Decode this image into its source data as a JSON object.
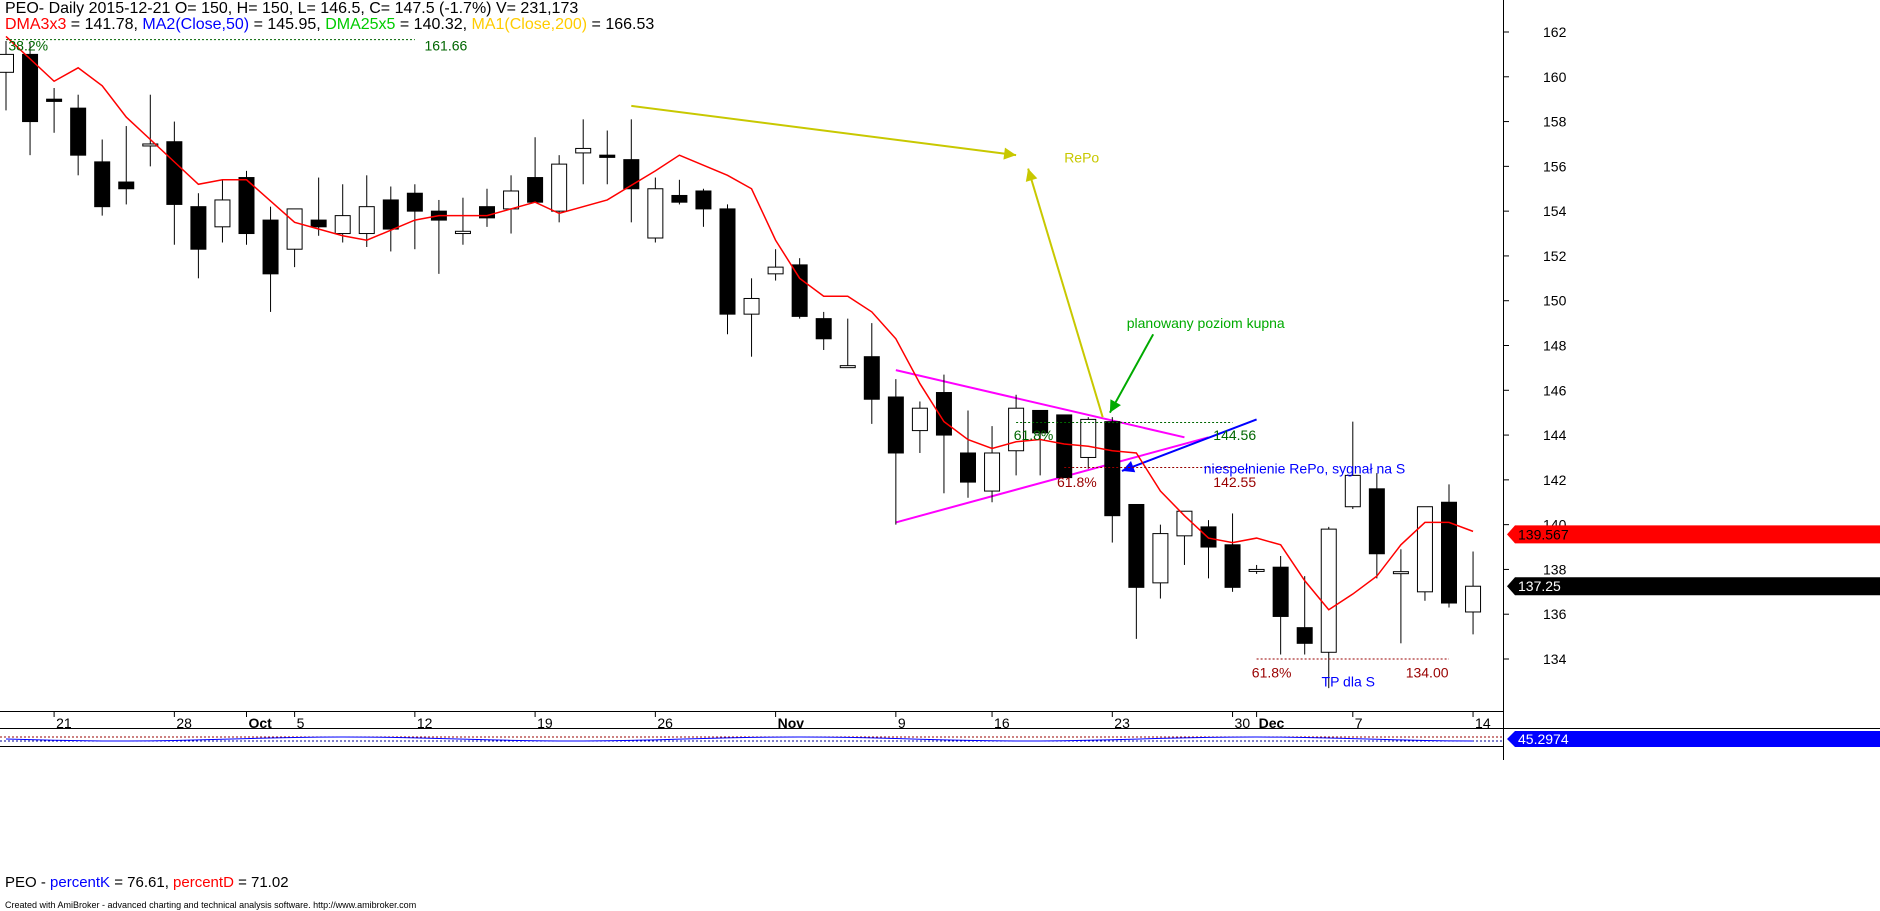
{
  "header": {
    "line1": "PEO- Daily 2015-12-21 O= 150, H= 150, L= 146.5, C= 147.5 (-1.7%) V= 231,173",
    "ind1_label": "DMA3x3",
    "ind1_value": " = 141.78, ",
    "ind2_label": "MA2(Close,50)",
    "ind2_value": " = 145.95, ",
    "ind3_label": "DMA25x5",
    "ind3_value": " = 140.32, ",
    "ind4_label": "MA1(Close,200)",
    "ind4_value": " = 166.53"
  },
  "sub_header": {
    "ticker": "PEO - ",
    "k_label": "percentK",
    "k_value": " = 76.61, ",
    "d_label": "percentD",
    "d_value": " = 71.02"
  },
  "footer": "Created with AmiBroker - advanced charting and technical analysis software. http://www.amibroker.com",
  "colors": {
    "up_body": "#ffffff",
    "down_body": "#000000",
    "dma3x3": "#ff0000",
    "ma2": "#0000ff",
    "dma25x5": "#00cc00",
    "ma200": "#ffcc00",
    "triangle": "#ff00ff",
    "repo_arrow": "#c8c800",
    "plan_arrow": "#00aa00",
    "blue_arrow": "#0000ff",
    "fib_green": "#006600",
    "fib_red": "#990000",
    "price_bg": "#ff0000",
    "close_bg": "#000000"
  },
  "chart_data": {
    "type": "candlestick",
    "ylim": [
      131.5,
      163
    ],
    "y_ticks": [
      134,
      136,
      138,
      140,
      142,
      144,
      146,
      148,
      150,
      152,
      154,
      156,
      158,
      160,
      162
    ],
    "x_labels": [
      {
        "i": 2,
        "label": "21"
      },
      {
        "i": 7,
        "label": "28"
      },
      {
        "i": 10,
        "label": "Oct",
        "bold": true
      },
      {
        "i": 12,
        "label": "5"
      },
      {
        "i": 17,
        "label": "12"
      },
      {
        "i": 22,
        "label": "19"
      },
      {
        "i": 27,
        "label": "26"
      },
      {
        "i": 32,
        "label": "Nov",
        "bold": true
      },
      {
        "i": 37,
        "label": "9"
      },
      {
        "i": 41,
        "label": "16"
      },
      {
        "i": 46,
        "label": "23"
      },
      {
        "i": 51,
        "label": "30"
      },
      {
        "i": 52,
        "label": "Dec",
        "bold": true
      },
      {
        "i": 56,
        "label": "7"
      },
      {
        "i": 61,
        "label": "14"
      }
    ],
    "ohlc": [
      [
        160.2,
        161.6,
        158.5,
        161.0
      ],
      [
        161.0,
        161.5,
        156.5,
        158.0
      ],
      [
        159.0,
        159.5,
        157.5,
        158.9
      ],
      [
        158.6,
        159.2,
        155.6,
        156.5
      ],
      [
        156.2,
        157.2,
        153.8,
        154.2
      ],
      [
        155.3,
        157.8,
        154.3,
        155.0
      ],
      [
        157.0,
        159.2,
        156.0,
        157.0
      ],
      [
        157.1,
        158.0,
        152.5,
        154.3
      ],
      [
        154.2,
        154.8,
        151.0,
        152.3
      ],
      [
        153.3,
        155.4,
        152.6,
        154.5
      ],
      [
        155.5,
        155.8,
        152.5,
        153.0
      ],
      [
        153.6,
        154.2,
        149.5,
        151.2
      ],
      [
        152.3,
        154.1,
        151.5,
        154.1
      ],
      [
        153.6,
        155.5,
        152.9,
        153.3
      ],
      [
        153.0,
        155.2,
        152.6,
        153.8
      ],
      [
        153.0,
        155.6,
        152.4,
        154.2
      ],
      [
        154.5,
        155.1,
        152.2,
        153.2
      ],
      [
        154.8,
        155.2,
        152.3,
        154.0
      ],
      [
        154.0,
        154.5,
        151.2,
        153.6
      ],
      [
        153.0,
        154.6,
        152.5,
        153.1
      ],
      [
        154.2,
        155.0,
        153.3,
        153.7
      ],
      [
        154.1,
        155.6,
        153.0,
        154.9
      ],
      [
        155.5,
        157.3,
        154.4,
        154.4
      ],
      [
        154.0,
        156.5,
        153.5,
        156.1
      ],
      [
        156.6,
        158.1,
        155.2,
        156.8
      ],
      [
        156.5,
        157.6,
        155.2,
        156.4
      ],
      [
        156.3,
        158.1,
        153.5,
        155.0
      ],
      [
        152.8,
        155.5,
        152.6,
        155.0
      ],
      [
        154.7,
        155.4,
        154.3,
        154.4
      ],
      [
        154.9,
        155.0,
        153.3,
        154.1
      ],
      [
        154.1,
        154.3,
        148.5,
        149.4
      ],
      [
        149.4,
        151.0,
        147.5,
        150.1
      ],
      [
        151.2,
        152.3,
        150.9,
        151.5
      ],
      [
        151.6,
        151.9,
        149.2,
        149.3
      ],
      [
        149.2,
        149.5,
        147.8,
        148.3
      ],
      [
        147.1,
        149.2,
        147.1,
        147.1
      ],
      [
        147.5,
        149.0,
        144.5,
        145.6
      ],
      [
        145.7,
        146.5,
        140.0,
        143.2
      ],
      [
        144.2,
        145.5,
        143.2,
        145.2
      ],
      [
        145.9,
        146.7,
        141.4,
        144.0
      ],
      [
        143.2,
        145.1,
        141.2,
        141.9
      ],
      [
        141.5,
        144.4,
        141.0,
        143.2
      ],
      [
        143.3,
        145.8,
        142.2,
        145.2
      ],
      [
        145.1,
        145.0,
        142.2,
        144.1
      ],
      [
        144.9,
        144.9,
        142.1,
        142.1
      ],
      [
        143.0,
        144.8,
        142.5,
        144.7
      ],
      [
        144.6,
        144.8,
        139.2,
        140.4
      ],
      [
        140.9,
        140.9,
        134.9,
        137.2
      ],
      [
        137.4,
        140.0,
        136.7,
        139.6
      ],
      [
        139.5,
        140.6,
        138.2,
        140.6
      ],
      [
        139.9,
        140.2,
        137.6,
        139.0
      ],
      [
        139.1,
        140.5,
        137.0,
        137.2
      ],
      [
        138.0,
        138.2,
        137.8,
        138.0
      ],
      [
        138.1,
        138.6,
        134.2,
        135.9
      ],
      [
        135.4,
        137.7,
        134.2,
        134.7
      ],
      [
        134.3,
        139.9,
        132.7,
        139.8
      ],
      [
        140.8,
        144.6,
        140.7,
        142.2
      ],
      [
        141.6,
        142.3,
        137.6,
        138.7
      ],
      [
        137.9,
        138.9,
        134.7,
        137.9
      ],
      [
        137.0,
        140.8,
        136.6,
        140.8
      ],
      [
        141.0,
        141.8,
        136.3,
        136.5
      ],
      [
        136.1,
        138.8,
        135.1,
        137.25
      ]
    ],
    "dma3x3": [
      [
        0,
        161.8
      ],
      [
        2,
        159.8
      ],
      [
        3,
        160.4
      ],
      [
        4,
        159.6
      ],
      [
        5,
        158.2
      ],
      [
        7,
        156.2
      ],
      [
        8,
        155.2
      ],
      [
        9,
        155.4
      ],
      [
        10,
        155.4
      ],
      [
        12,
        153.5
      ],
      [
        14,
        152.9
      ],
      [
        15,
        152.7
      ],
      [
        17,
        153.6
      ],
      [
        18,
        153.8
      ],
      [
        20,
        153.8
      ],
      [
        22,
        154.4
      ],
      [
        23,
        153.9
      ],
      [
        25,
        154.5
      ],
      [
        27,
        155.8
      ],
      [
        28,
        156.5
      ],
      [
        30,
        155.6
      ],
      [
        31,
        155.0
      ],
      [
        32,
        152.7
      ],
      [
        33,
        151.0
      ],
      [
        34,
        150.2
      ],
      [
        35,
        150.2
      ],
      [
        36,
        149.5
      ],
      [
        37,
        148.3
      ],
      [
        38,
        146.3
      ],
      [
        39,
        144.6
      ],
      [
        40,
        143.8
      ],
      [
        41,
        143.4
      ],
      [
        42,
        143.7
      ],
      [
        43,
        143.8
      ],
      [
        44,
        143.6
      ],
      [
        45,
        143.5
      ],
      [
        46,
        143.3
      ],
      [
        47,
        143.2
      ],
      [
        48,
        141.5
      ],
      [
        49,
        140.4
      ],
      [
        50,
        139.4
      ],
      [
        51,
        139.2
      ],
      [
        52,
        139.4
      ],
      [
        53,
        139.1
      ],
      [
        54,
        137.5
      ],
      [
        55,
        136.2
      ],
      [
        56,
        136.9
      ],
      [
        57,
        137.7
      ],
      [
        58,
        139.1
      ],
      [
        59,
        140.1
      ],
      [
        60,
        140.1
      ],
      [
        61,
        139.7
      ]
    ],
    "lines": {
      "triangle_top": [
        [
          37,
          146.9
        ],
        [
          49,
          143.9
        ]
      ],
      "triangle_bottom": [
        [
          37,
          140.1
        ],
        [
          50,
          143.9
        ]
      ],
      "repo_arrow": [
        [
          26,
          158.7
        ],
        [
          42,
          156.5
        ]
      ],
      "repo_up_arrow": [
        [
          45.6,
          144.8
        ],
        [
          42.5,
          155.9
        ]
      ],
      "plan_arrow": [
        [
          47.7,
          148.5
        ],
        [
          45.9,
          145.0
        ]
      ],
      "blue_arrow": [
        [
          52,
          144.7
        ],
        [
          46.4,
          142.4
        ]
      ]
    },
    "fib_lines": [
      {
        "from": 0,
        "to": 17,
        "y": 161.66,
        "color": "green"
      },
      {
        "from": 42,
        "to": 51,
        "y": 144.56,
        "color": "green"
      },
      {
        "from": 44,
        "to": 51,
        "y": 142.55,
        "color": "red"
      },
      {
        "from": 52,
        "to": 60,
        "y": 134.0,
        "color": "red"
      }
    ],
    "annotations": [
      {
        "text": "38.2%",
        "i": 0.1,
        "y": 161.4,
        "color": "fib_green"
      },
      {
        "text": "161.66",
        "i": 17.4,
        "y": 161.4,
        "color": "fib_green"
      },
      {
        "text": "RePo",
        "i": 44,
        "y": 156.4,
        "color": "repo_arrow"
      },
      {
        "text": "planowany poziom kupna",
        "i": 46.6,
        "y": 149.0,
        "color": "plan_arrow"
      },
      {
        "text": "61.8%",
        "i": 41.9,
        "y": 144.0,
        "color": "fib_green"
      },
      {
        "text": "144.56",
        "i": 50.2,
        "y": 144.0,
        "color": "fib_green"
      },
      {
        "text": "niespełnienie RePo, sygnał na S",
        "i": 49.8,
        "y": 142.5,
        "color": "blue_arrow"
      },
      {
        "text": "61.8%",
        "i": 43.7,
        "y": 141.9,
        "color": "fib_red"
      },
      {
        "text": "142.55",
        "i": 50.2,
        "y": 141.9,
        "color": "fib_red"
      },
      {
        "text": "61.8%",
        "i": 51.8,
        "y": 133.4,
        "color": "fib_red"
      },
      {
        "text": "TP dla S",
        "i": 54.7,
        "y": 133.0,
        "color": "blue_arrow"
      },
      {
        "text": "134.00",
        "i": 58.2,
        "y": 133.4,
        "color": "fib_red"
      }
    ],
    "price_labels": [
      {
        "value": "139.567",
        "y": 139.567,
        "style": "red"
      },
      {
        "value": "137.25",
        "y": 137.25,
        "style": "black"
      }
    ],
    "sub_panel": {
      "k_label": "45.2974"
    }
  }
}
